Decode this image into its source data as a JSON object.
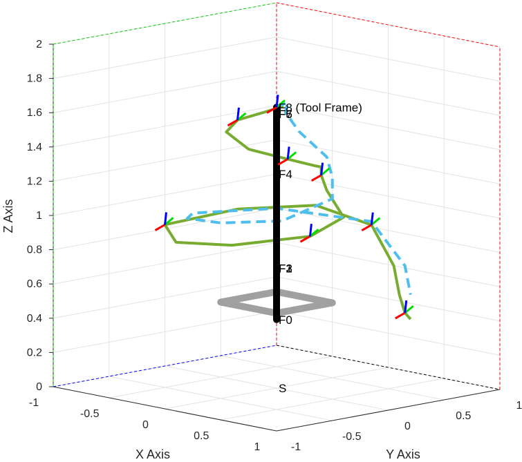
{
  "chart_data": {
    "type": "3d-line",
    "title": "",
    "xlabel": "X Axis",
    "ylabel": "Y Axis",
    "zlabel": "Z Axis",
    "xlim": [
      -1,
      1
    ],
    "ylim": [
      -1,
      1
    ],
    "zlim": [
      0,
      2
    ],
    "x_ticks": [
      "-1",
      "-0.5",
      "0",
      "0.5",
      "1"
    ],
    "y_ticks": [
      "-1",
      "-0.5",
      "0",
      "0.5",
      "1"
    ],
    "z_ticks": [
      "0",
      "0.2",
      "0.4",
      "0.6",
      "0.8",
      "1",
      "1.2",
      "1.4",
      "1.6",
      "1.8",
      "2"
    ],
    "grid": true,
    "colors": {
      "actual_path": "#77ac30",
      "desired_path": "#4dbeee",
      "robot_link": "#000000",
      "base_plate": "#a0a0a0",
      "frame_x": "#ff0000",
      "frame_y": "#00dd00",
      "frame_z": "#0000ff"
    },
    "frame_labels": [
      {
        "text": "S",
        "x": 0.0,
        "y": 0.0,
        "z": 0.0
      },
      {
        "text": "F0",
        "x": 0.0,
        "y": 0.0,
        "z": 0.4
      },
      {
        "text": "F1",
        "x": 0.0,
        "y": 0.0,
        "z": 0.7
      },
      {
        "text": "F2",
        "x": 0.0,
        "y": 0.0,
        "z": 0.7
      },
      {
        "text": "F3",
        "x": 0.0,
        "y": 0.0,
        "z": 0.7
      },
      {
        "text": "F4",
        "x": 0.0,
        "y": 0.0,
        "z": 1.25
      },
      {
        "text": "F5",
        "x": 0.0,
        "y": 0.0,
        "z": 1.6
      },
      {
        "text": "F6",
        "x": 0.0,
        "y": 0.0,
        "z": 1.6
      },
      {
        "text": "F7",
        "x": 0.0,
        "y": 0.0,
        "z": 1.6
      },
      {
        "text": "F8 (Tool Frame)",
        "x": 0.0,
        "y": 0.0,
        "z": 1.64
      }
    ],
    "robot_link": [
      [
        0.0,
        0.0,
        0.4
      ],
      [
        0.0,
        0.0,
        0.7
      ],
      [
        0.0,
        0.0,
        1.25
      ],
      [
        0.0,
        0.0,
        1.64
      ]
    ],
    "base_plate": [
      [
        -0.25,
        -0.25,
        0.5
      ],
      [
        0.25,
        -0.25,
        0.5
      ],
      [
        0.25,
        0.25,
        0.5
      ],
      [
        -0.25,
        0.25,
        0.5
      ]
    ],
    "series": [
      {
        "points": [
          [
            0.0,
            0.0,
            1.64
          ],
          [
            -0.15,
            0.2,
            1.6
          ],
          [
            -0.3,
            0.2,
            1.55
          ],
          [
            -0.35,
            0.0,
            1.52
          ],
          [
            -0.2,
            -0.25,
            1.5
          ],
          [
            0.1,
            -0.35,
            1.45
          ],
          [
            0.3,
            -0.2,
            1.4
          ],
          [
            0.3,
            0.05,
            1.33
          ],
          [
            0.15,
            0.25,
            1.28
          ],
          [
            0.1,
            0.3,
            1.22
          ],
          [
            0.2,
            0.25,
            1.15
          ],
          [
            0.5,
            0.1,
            1.05
          ],
          [
            0.6,
            -0.3,
            1.0
          ],
          [
            0.35,
            -0.75,
            0.97
          ],
          [
            0.0,
            -0.9,
            0.96
          ],
          [
            -0.3,
            -0.7,
            1.0
          ],
          [
            -0.35,
            0.0,
            1.0
          ],
          [
            -0.1,
            0.45,
            1.0
          ],
          [
            0.2,
            0.65,
            0.9
          ],
          [
            0.45,
            0.6,
            0.7
          ],
          [
            0.55,
            0.55,
            0.55
          ],
          [
            0.6,
            0.55,
            0.45
          ],
          [
            0.65,
            0.55,
            0.42
          ]
        ]
      },
      {
        "points": [
          [
            0.0,
            0.0,
            1.64
          ],
          [
            -0.15,
            0.25,
            1.62
          ],
          [
            -0.2,
            0.28,
            1.55
          ],
          [
            -0.1,
            0.3,
            1.45
          ],
          [
            0.1,
            0.35,
            1.32
          ],
          [
            0.2,
            0.3,
            1.22
          ],
          [
            0.3,
            0.2,
            1.12
          ],
          [
            0.2,
            -0.15,
            1.02
          ],
          [
            -0.1,
            -0.4,
            1.0
          ],
          [
            -0.35,
            -0.45,
            1.0
          ],
          [
            -0.45,
            -0.3,
            1.0
          ],
          [
            -0.2,
            0.2,
            1.0
          ],
          [
            0.2,
            0.65,
            0.92
          ],
          [
            0.5,
            0.65,
            0.7
          ],
          [
            0.6,
            0.6,
            0.55
          ]
        ]
      }
    ]
  }
}
